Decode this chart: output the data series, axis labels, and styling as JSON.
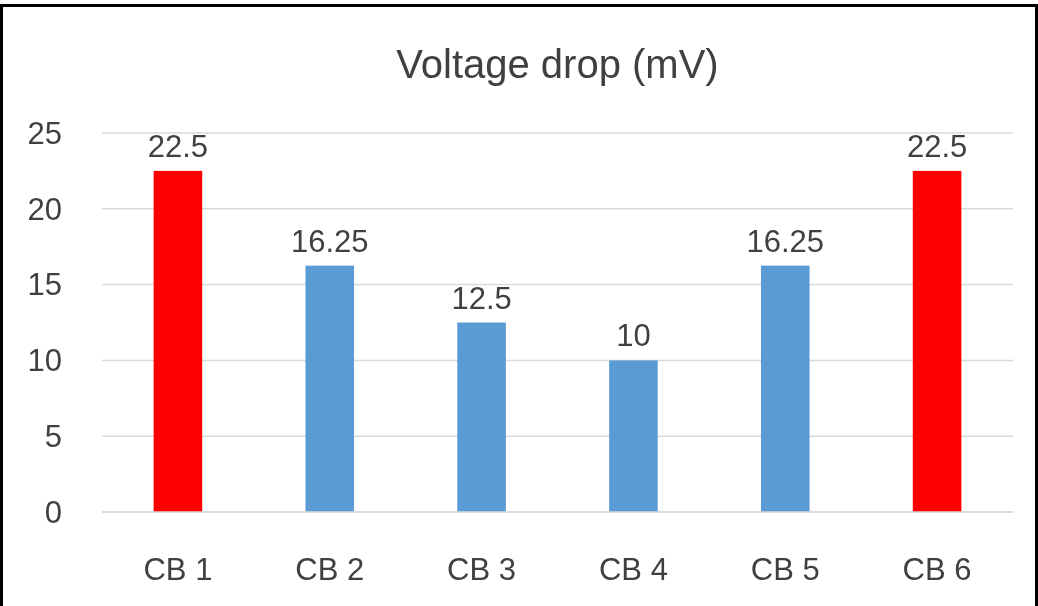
{
  "chart_data": {
    "type": "bar",
    "title": "Voltage drop (mV)",
    "categories": [
      "CB 1",
      "CB 2",
      "CB 3",
      "CB 4",
      "CB 5",
      "CB 6"
    ],
    "values": [
      22.5,
      16.25,
      12.5,
      10,
      16.25,
      22.5
    ],
    "colors": [
      "#ff0000",
      "#5b9bd5",
      "#5b9bd5",
      "#5b9bd5",
      "#5b9bd5",
      "#ff0000"
    ],
    "ylim": [
      0,
      25
    ],
    "yticks": [
      0,
      5,
      10,
      15,
      20,
      25
    ],
    "grid": "y",
    "data_labels": true
  }
}
